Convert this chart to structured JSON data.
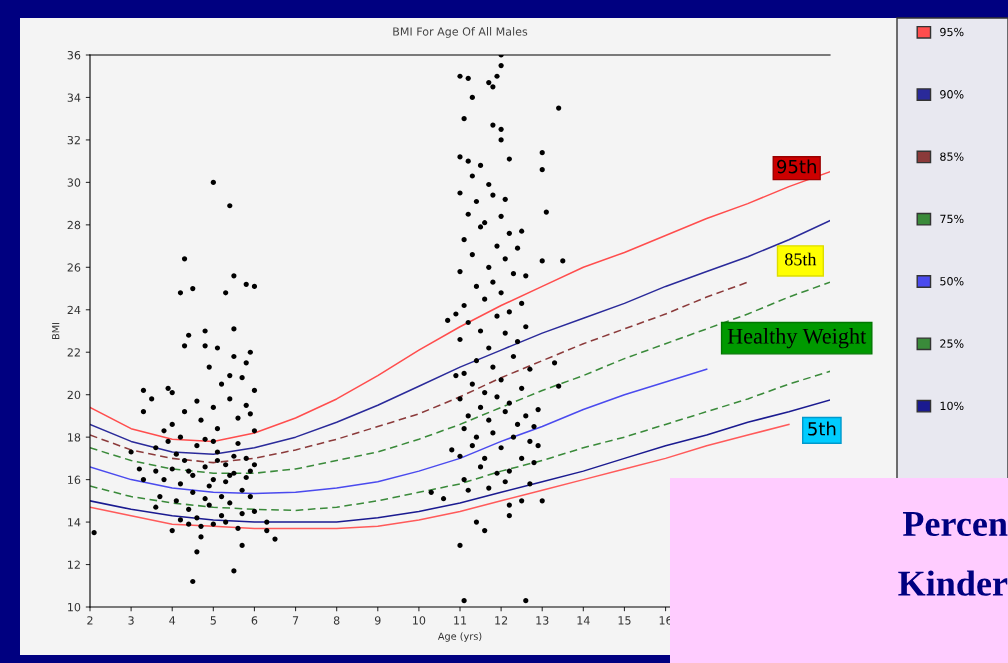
{
  "chart_data": {
    "type": "line",
    "title": "BMI For Age Of All Males",
    "xlabel": "Age (yrs)",
    "ylabel": "BMI",
    "x": [
      2,
      3,
      4,
      5,
      6,
      7,
      8,
      9,
      10,
      11,
      12,
      13,
      14,
      15,
      16,
      17,
      18,
      19,
      20
    ],
    "xlim": [
      2,
      20
    ],
    "xticks": [
      2,
      3,
      4,
      5,
      6,
      7,
      8,
      9,
      10,
      11,
      12,
      13,
      14,
      15,
      16
    ],
    "ylim": [
      10,
      36
    ],
    "yticks": [
      10,
      12,
      14,
      16,
      18,
      20,
      22,
      24,
      26,
      28,
      30,
      32,
      34,
      36
    ],
    "grid": false,
    "legend": "right",
    "marker": "none",
    "series": [
      {
        "name": "95%",
        "color": "#ff4d4d",
        "line_style": "solid",
        "values": [
          19.4,
          18.4,
          17.9,
          17.8,
          18.2,
          18.9,
          19.8,
          20.9,
          22.1,
          23.2,
          24.2,
          25.1,
          26.0,
          26.7,
          27.5,
          28.3,
          29.0,
          29.8,
          30.5
        ]
      },
      {
        "name": "90%",
        "color": "#2a2a9a",
        "line_style": "solid",
        "values": [
          18.6,
          17.8,
          17.3,
          17.2,
          17.5,
          18.0,
          18.7,
          19.5,
          20.4,
          21.3,
          22.1,
          22.9,
          23.6,
          24.3,
          25.1,
          25.8,
          26.5,
          27.3,
          28.2
        ]
      },
      {
        "name": "85%",
        "color": "#8b3a3a",
        "line_style": "dashed",
        "values": [
          18.1,
          17.4,
          17.0,
          16.8,
          17.0,
          17.4,
          17.9,
          18.5,
          19.1,
          19.9,
          20.8,
          21.6,
          22.4,
          23.1,
          23.8,
          24.6,
          25.3,
          null,
          null
        ]
      },
      {
        "name": "75%",
        "color": "#3a8a3a",
        "line_style": "dashed",
        "values": [
          17.5,
          16.9,
          16.5,
          16.3,
          16.3,
          16.5,
          16.9,
          17.3,
          17.9,
          18.6,
          19.4,
          20.2,
          20.9,
          21.7,
          22.4,
          23.1,
          23.8,
          24.6,
          25.3
        ]
      },
      {
        "name": "50%",
        "color": "#4a4aee",
        "line_style": "solid",
        "values": [
          16.6,
          16.0,
          15.6,
          15.4,
          15.35,
          15.4,
          15.6,
          15.9,
          16.4,
          17.0,
          17.8,
          18.5,
          19.3,
          20.0,
          20.6,
          21.2,
          null,
          null,
          null
        ]
      },
      {
        "name": "25%",
        "color": "#3a8a3a",
        "line_style": "dashed",
        "values": [
          15.7,
          15.2,
          14.9,
          14.7,
          14.6,
          14.55,
          14.7,
          15.0,
          15.4,
          15.8,
          16.4,
          16.9,
          17.5,
          18.0,
          18.6,
          19.2,
          19.8,
          20.5,
          21.1
        ]
      },
      {
        "name": "10%",
        "color": "#1a1a90",
        "line_style": "solid",
        "values": [
          15.0,
          14.6,
          14.3,
          14.1,
          14.0,
          14.0,
          14.0,
          14.2,
          14.5,
          14.9,
          15.4,
          15.9,
          16.4,
          17.0,
          17.6,
          18.1,
          18.7,
          19.2,
          19.75
        ]
      },
      {
        "color": "#ff5a5a",
        "line_style": "solid",
        "values": [
          14.7,
          14.3,
          13.9,
          13.8,
          13.7,
          13.7,
          13.7,
          13.8,
          14.1,
          14.5,
          15.0,
          15.5,
          16.0,
          16.5,
          17.0,
          17.6,
          18.1,
          18.6,
          null
        ]
      },
      {
        "type": "scatter",
        "color": "#000000",
        "marker": "circle",
        "x": [
          2.1,
          3.3,
          3.5,
          3.3,
          3.2,
          3.3,
          3.6,
          3.0,
          4.0,
          3.9,
          4.4,
          4.3,
          4.3,
          4.2,
          4.5,
          5.0,
          5.4,
          5.3,
          5.8,
          6.0,
          4.8,
          5.5,
          4.8,
          5.1,
          5.4,
          5.5,
          5.8,
          5.9,
          6.0,
          4.5,
          5.5,
          4.6,
          5.7,
          4.7,
          6.5,
          6.3,
          6.3,
          4.0,
          4.0,
          4.1,
          4.2,
          4.1,
          4.3,
          4.4,
          4.2,
          4.5,
          4.6,
          4.5,
          4.7,
          4.6,
          4.8,
          4.9,
          4.8,
          5.0,
          5.0,
          4.9,
          5.1,
          5.2,
          5.1,
          5.3,
          5.2,
          5.4,
          5.3,
          5.5,
          5.4,
          5.6,
          5.5,
          5.7,
          5.6,
          5.8,
          5.7,
          5.9,
          5.8,
          5.9,
          6.0,
          6.0,
          3.9,
          3.8,
          4.3,
          4.4,
          4.7,
          5.0,
          5.3,
          5.6,
          4.0,
          4.6,
          5.2,
          5.7,
          4.9,
          5.5,
          3.7,
          3.6,
          5.1,
          4.4,
          5.4,
          4.8,
          5.9,
          5.0,
          4.2,
          3.6,
          3.8,
          6.0,
          5.8,
          11.0,
          11.3,
          11.2,
          11.9,
          12.0,
          11.8,
          12.0,
          11.7,
          11.8,
          12.0,
          13.4,
          11.1,
          11.2,
          12.0,
          13.0,
          13.0,
          12.2,
          13.1,
          12.5,
          10.7,
          10.9,
          13.3,
          13.4,
          12.6,
          13.0,
          13.5,
          11.0,
          11.1,
          12.6,
          11.6,
          11.4,
          12.2,
          12.5,
          12.2,
          13.0,
          10.6,
          10.3,
          11.0,
          11.1,
          11.0,
          11.1,
          11.0,
          11.1,
          11.0,
          11.1,
          11.0,
          11.1,
          11.2,
          11.3,
          11.2,
          11.3,
          11.2,
          11.3,
          11.2,
          11.4,
          11.5,
          11.4,
          11.5,
          11.4,
          11.5,
          11.4,
          11.5,
          11.6,
          11.7,
          11.6,
          11.7,
          11.6,
          11.7,
          11.6,
          11.7,
          11.8,
          11.9,
          11.8,
          11.9,
          11.8,
          11.9,
          11.8,
          11.9,
          12.0,
          12.1,
          12.0,
          12.1,
          12.0,
          12.1,
          12.0,
          12.1,
          12.2,
          12.3,
          12.2,
          12.3,
          12.2,
          12.3,
          12.2,
          12.4,
          12.5,
          12.4,
          12.5,
          12.4,
          12.5,
          12.6,
          12.7,
          12.6,
          12.7,
          12.8,
          12.8,
          12.7,
          11.0,
          11.3,
          11.5,
          11.7,
          12.1,
          10.9,
          10.8,
          12.9,
          12.9
        ],
        "values": [
          13.5,
          20.2,
          19.8,
          19.2,
          16.5,
          16.0,
          16.4,
          17.3,
          20.1,
          20.3,
          22.8,
          22.3,
          26.4,
          24.8,
          25.0,
          30.0,
          28.9,
          24.8,
          25.2,
          25.1,
          22.3,
          25.6,
          23.0,
          22.2,
          20.9,
          23.1,
          21.5,
          22.0,
          20.2,
          11.2,
          11.7,
          12.6,
          12.9,
          13.3,
          13.2,
          13.6,
          14.0,
          13.6,
          16.5,
          17.2,
          15.8,
          15.0,
          16.9,
          14.6,
          18.0,
          16.2,
          17.6,
          15.4,
          18.8,
          14.2,
          16.6,
          15.7,
          17.9,
          19.4,
          16.0,
          14.8,
          17.3,
          15.2,
          18.4,
          16.7,
          14.3,
          19.8,
          15.9,
          17.1,
          14.9,
          18.9,
          16.3,
          15.5,
          17.7,
          16.1,
          14.4,
          19.1,
          17.0,
          15.2,
          16.7,
          14.5,
          17.8,
          16.0,
          19.2,
          13.9,
          13.8,
          13.9,
          14.0,
          13.7,
          18.6,
          19.7,
          20.5,
          20.8,
          21.3,
          21.8,
          15.2,
          14.7,
          16.9,
          16.4,
          16.2,
          15.1,
          16.4,
          17.8,
          14.1,
          17.5,
          18.3,
          18.3,
          19.5,
          35.0,
          34.0,
          34.9,
          35.0,
          35.5,
          34.5,
          36.0,
          34.7,
          32.7,
          32.5,
          33.5,
          33.0,
          31.0,
          32.0,
          31.4,
          30.6,
          31.1,
          28.6,
          27.7,
          23.5,
          23.8,
          21.5,
          20.4,
          25.6,
          26.3,
          26.3,
          12.9,
          10.3,
          10.3,
          13.6,
          14.0,
          14.3,
          15.0,
          14.8,
          15.0,
          15.1,
          15.4,
          29.5,
          27.3,
          25.8,
          24.2,
          22.6,
          21.0,
          19.8,
          18.4,
          17.1,
          16.0,
          28.5,
          26.6,
          23.4,
          20.5,
          19.0,
          17.6,
          15.5,
          29.1,
          27.9,
          25.1,
          23.0,
          21.6,
          19.4,
          18.0,
          16.6,
          28.1,
          26.0,
          24.5,
          22.2,
          20.1,
          18.8,
          17.0,
          15.6,
          29.4,
          27.0,
          25.3,
          23.7,
          21.3,
          19.9,
          18.2,
          16.3,
          28.4,
          26.4,
          24.8,
          22.9,
          20.7,
          19.2,
          17.5,
          15.9,
          27.6,
          25.7,
          23.9,
          21.8,
          19.6,
          18.0,
          16.4,
          26.9,
          24.3,
          22.5,
          20.3,
          18.6,
          17.0,
          23.2,
          21.2,
          19.0,
          17.8,
          18.5,
          16.8,
          15.8,
          31.2,
          30.3,
          30.8,
          29.9,
          29.2,
          20.9,
          17.4,
          19.3,
          17.6
        ]
      }
    ],
    "annotations": [
      "95th",
      "85th",
      "Healthy Weight",
      "5th",
      "Percen",
      "Kinder"
    ]
  }
}
